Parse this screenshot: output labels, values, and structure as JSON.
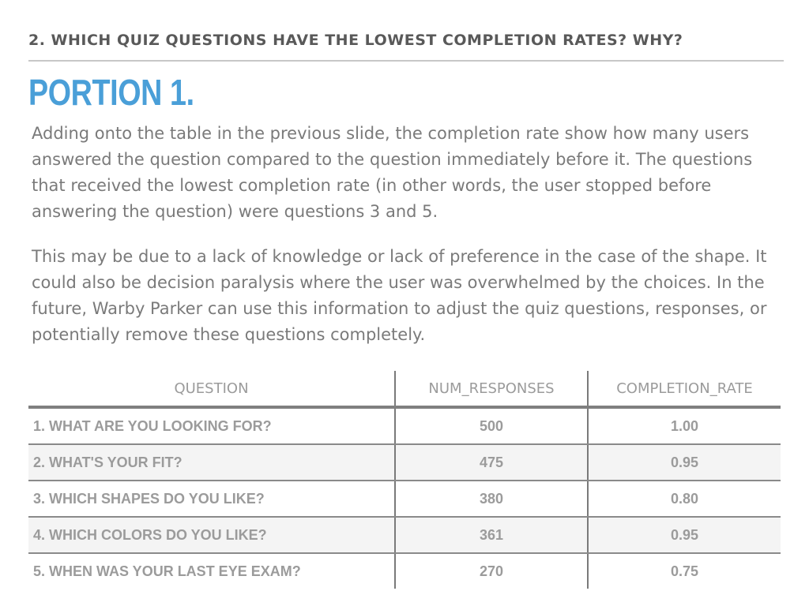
{
  "slide": {
    "header_title": "2. WHICH QUIZ QUESTIONS HAVE THE LOWEST COMPLETION RATES? WHY?",
    "section_title": "PORTION 1.",
    "paragraphs": [
      "Adding onto the table in the previous slide, the completion rate show how many users answered the question compared to the question immediately before it. The questions that received the lowest completion rate (in other words, the user stopped before answering the question) were questions 3 and 5.",
      "This may be due to a lack of knowledge or lack of preference in the case of the shape. It could also be decision paralysis where the user was overwhelmed by the choices. In the future, Warby Parker can use this information to adjust the quiz questions, responses, or potentially remove these questions completely."
    ]
  },
  "table": {
    "headers": [
      "QUESTION",
      "NUM_RESPONSES",
      "COMPLETION_RATE"
    ],
    "rows": [
      {
        "question": "1. WHAT ARE YOU LOOKING FOR?",
        "num_responses": "500",
        "completion_rate": "1.00"
      },
      {
        "question": "2. WHAT'S YOUR FIT?",
        "num_responses": "475",
        "completion_rate": "0.95"
      },
      {
        "question": "3. WHICH SHAPES DO YOU LIKE?",
        "num_responses": "380",
        "completion_rate": "0.80"
      },
      {
        "question": "4. WHICH COLORS DO YOU LIKE?",
        "num_responses": "361",
        "completion_rate": "0.95"
      },
      {
        "question": "5. WHEN WAS YOUR LAST EYE EXAM?",
        "num_responses": "270",
        "completion_rate": "0.75"
      }
    ]
  },
  "colors": {
    "accent": "#4a9fd8",
    "body_text": "#7a7a7a",
    "header_text": "#595959"
  }
}
